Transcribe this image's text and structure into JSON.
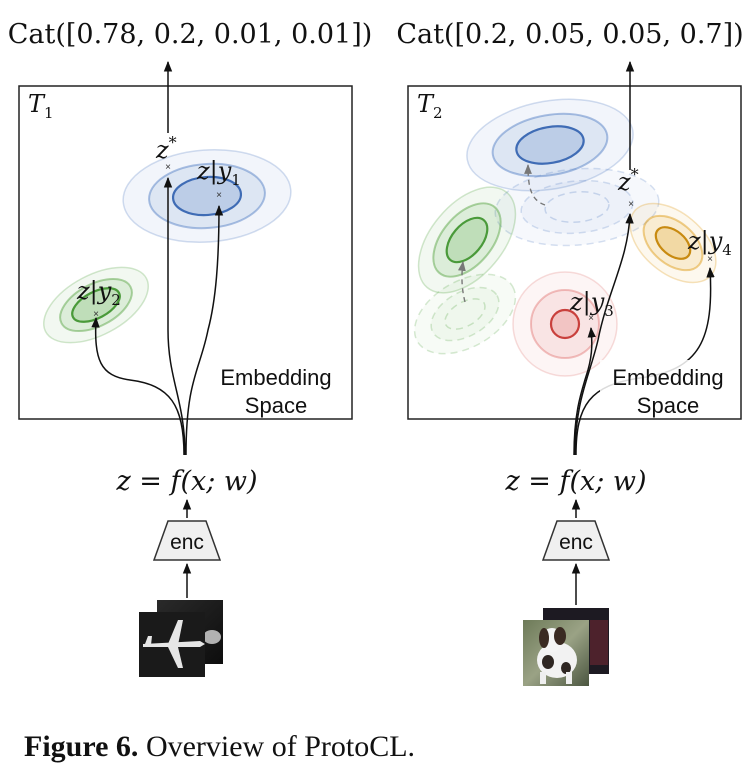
{
  "caption": {
    "label": "Figure 6.",
    "text": " Overview of ProtoCL."
  },
  "left_panel": {
    "output": "Cat([0.78, 0.2, 0.01, 0.01])",
    "task": "T",
    "task_index": "1",
    "zstar": "z",
    "zstar_sup": "*",
    "cluster_1_label": "z|y",
    "cluster_1_index": "1",
    "cluster_2_label": "z|y",
    "cluster_2_index": "2",
    "space_label_1": "Embedding",
    "space_label_2": "Space",
    "equation": "z = f(x; w)",
    "encoder": "enc"
  },
  "right_panel": {
    "output": "Cat([0.2, 0.05, 0.05, 0.7])",
    "task": "T",
    "task_index": "2",
    "zstar": "z",
    "zstar_sup": "*",
    "cluster_3_label": "z|y",
    "cluster_3_index": "3",
    "cluster_4_label": "z|y",
    "cluster_4_index": "4",
    "space_label_1": "Embedding",
    "space_label_2": "Space",
    "equation": "z = f(x; w)",
    "encoder": "enc"
  },
  "colors": {
    "blue": "#4a78c0",
    "green": "#5da84a",
    "red": "#d9534f",
    "orange": "#e0a020"
  }
}
